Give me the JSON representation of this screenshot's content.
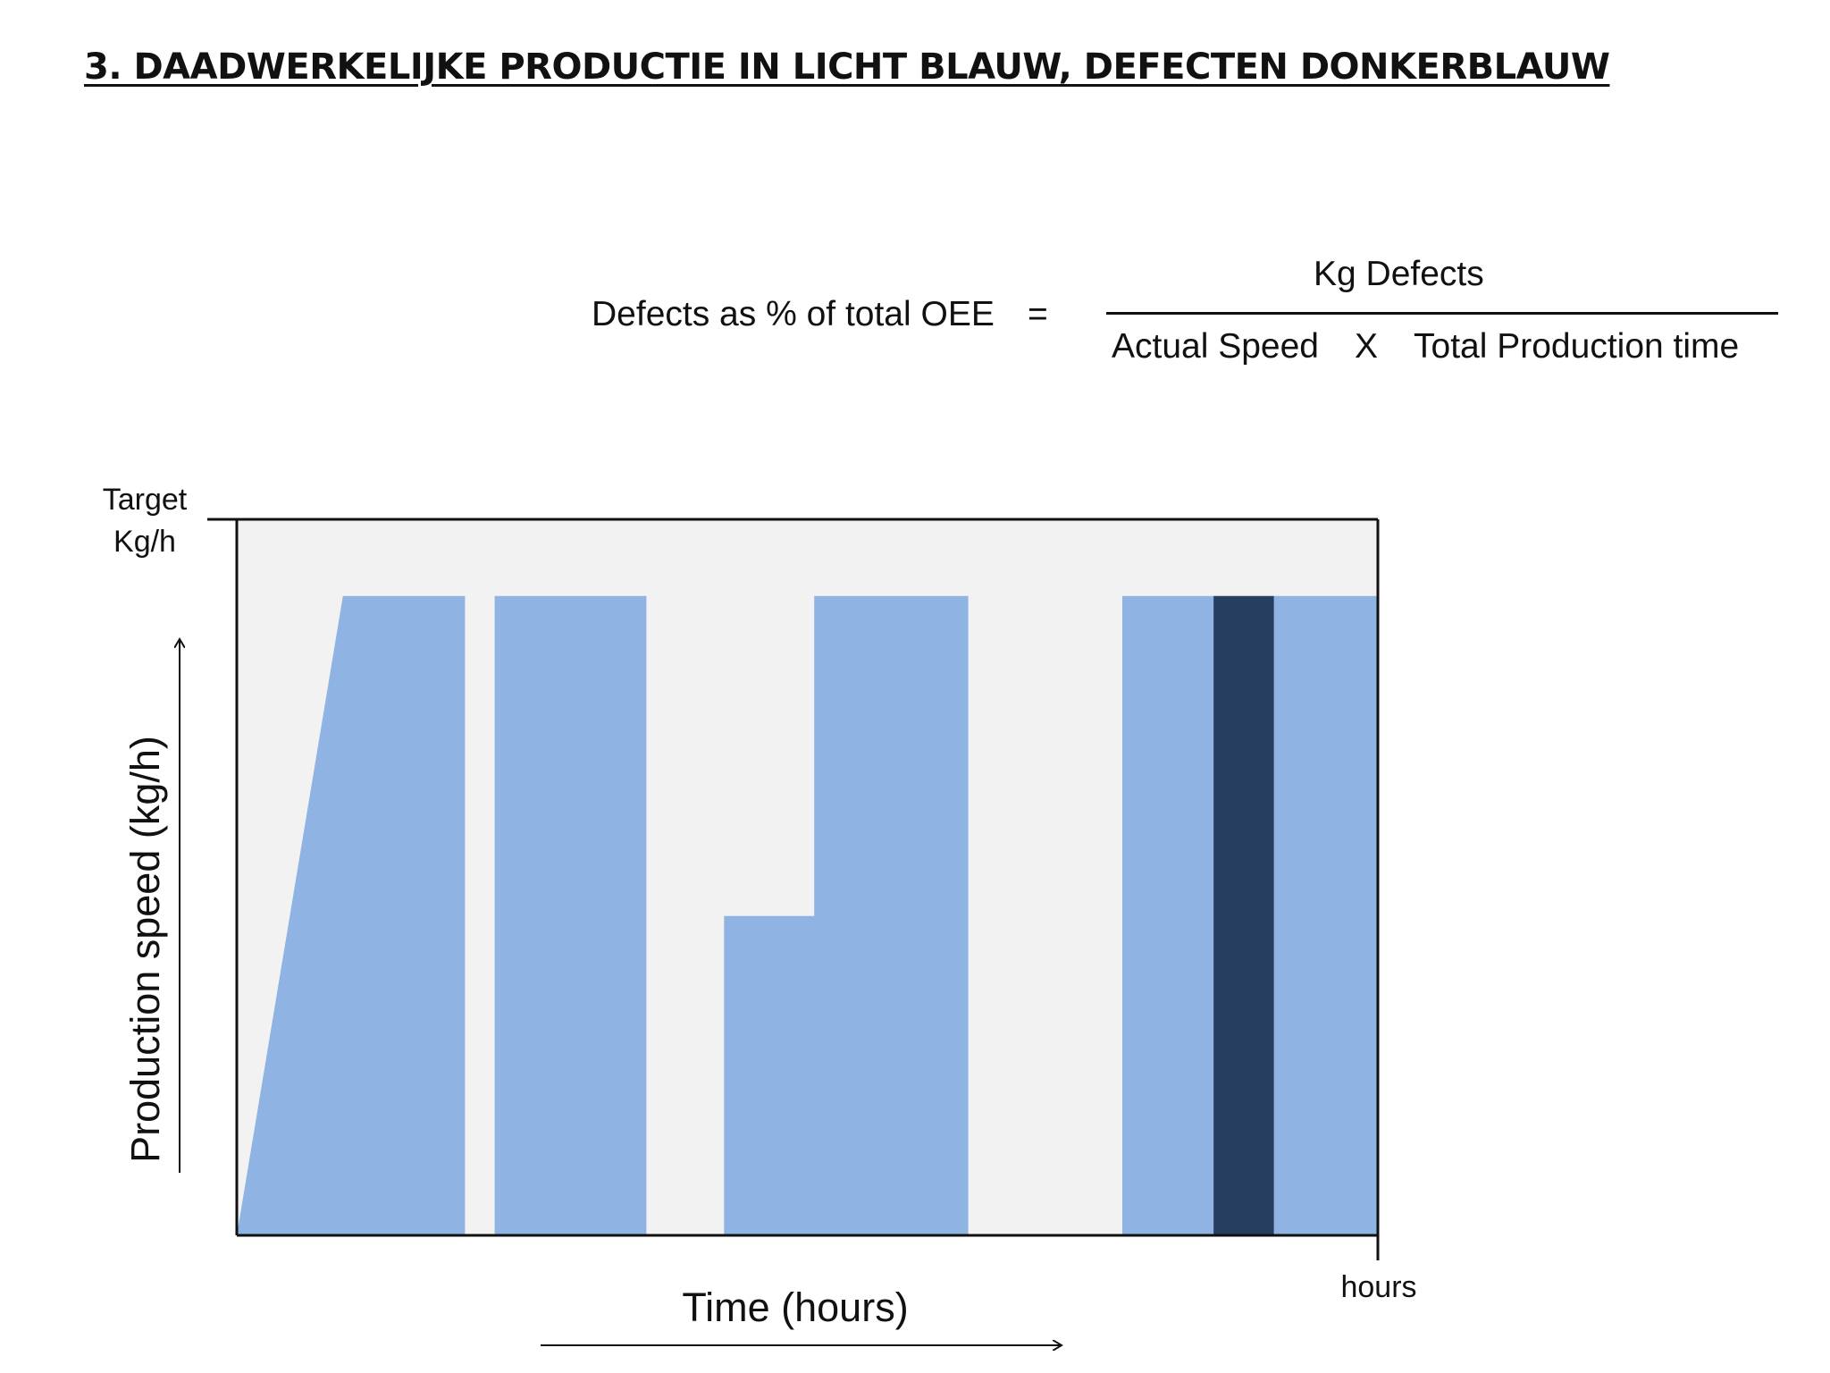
{
  "slide": {
    "title": "3. DAADWERKELIJKE PRODUCTIE IN LICHT BLAUW, DEFECTEN DONKERBLAUW"
  },
  "formula": {
    "label": "Defects as % of total OEE",
    "equals": "=",
    "numerator": "Kg Defects",
    "denominator_left": "Actual Speed",
    "operator": "X",
    "denominator_right": "Total Production time"
  },
  "chart_data": {
    "type": "area",
    "title": "",
    "xlabel": "Time (hours)",
    "ylabel": "Production speed (kg/h)",
    "x_end_label": "hours",
    "y_top_label": [
      "Target",
      "Kg/h"
    ],
    "xlim": [
      0,
      100
    ],
    "ylim": [
      0,
      100
    ],
    "colors": {
      "background": "#f2f2f2",
      "production": "#8fb3e3",
      "defects": "#263f61",
      "axis": "#111111"
    },
    "series": [
      {
        "name": "",
        "kind": "production",
        "points": [
          [
            0,
            0
          ],
          [
            9.3,
            89.3
          ],
          [
            20,
            89.3
          ],
          [
            20,
            0
          ]
        ]
      },
      {
        "name": "",
        "kind": "production",
        "points": [
          [
            22.6,
            0
          ],
          [
            22.6,
            89.3
          ],
          [
            35.9,
            89.3
          ],
          [
            35.9,
            0
          ]
        ]
      },
      {
        "name": "",
        "kind": "production",
        "points": [
          [
            42.7,
            0
          ],
          [
            42.7,
            44.6
          ],
          [
            50.6,
            44.6
          ],
          [
            50.6,
            89.3
          ],
          [
            64.1,
            89.3
          ],
          [
            64.1,
            0
          ]
        ]
      },
      {
        "name": "",
        "kind": "production",
        "points": [
          [
            77.6,
            0
          ],
          [
            77.6,
            89.3
          ],
          [
            85.6,
            89.3
          ],
          [
            85.6,
            0
          ]
        ]
      },
      {
        "name": "",
        "kind": "defects",
        "points": [
          [
            85.6,
            0
          ],
          [
            85.6,
            89.3
          ],
          [
            90.9,
            89.3
          ],
          [
            90.9,
            0
          ]
        ]
      },
      {
        "name": "",
        "kind": "production",
        "points": [
          [
            90.9,
            0
          ],
          [
            90.9,
            89.3
          ],
          [
            100,
            89.3
          ],
          [
            100,
            0
          ]
        ]
      }
    ],
    "grid": false,
    "legend": "none"
  }
}
